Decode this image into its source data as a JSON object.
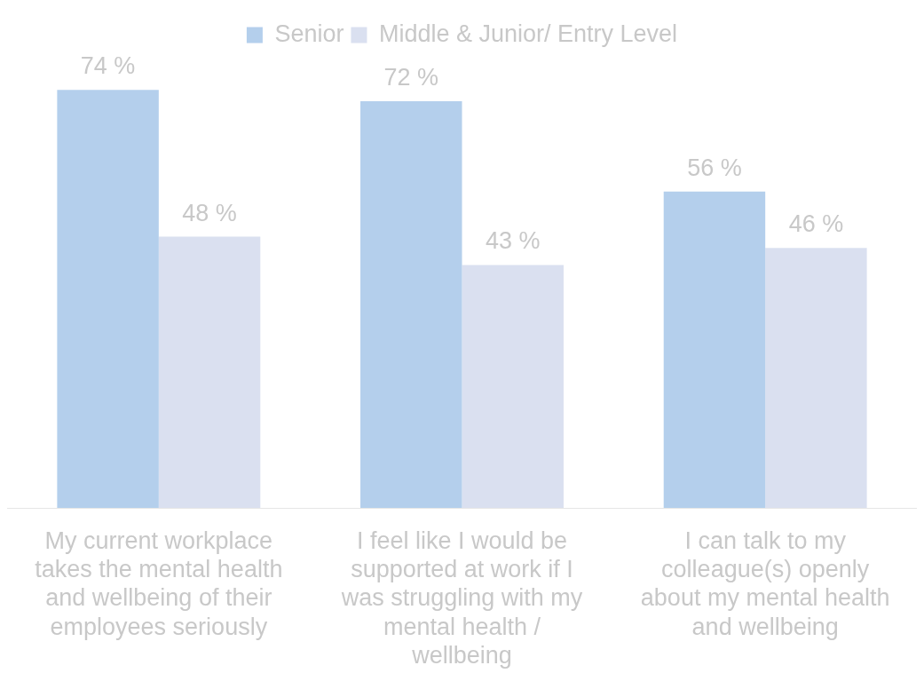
{
  "chart_data": {
    "type": "bar",
    "categories": [
      "My current workplace takes the mental health and wellbeing of their employees seriously",
      "I feel like I would be supported at work if I was struggling with my mental health / wellbeing",
      "I can talk to my colleague(s) openly about my mental health and wellbeing"
    ],
    "series": [
      {
        "name": "Senior",
        "color": "#b4cfec",
        "values": [
          74,
          72,
          56
        ],
        "value_labels": [
          "74 %",
          "72 %",
          "56 %"
        ]
      },
      {
        "name": "Middle & Junior/ Entry Level",
        "color": "#dae0f0",
        "values": [
          48,
          43,
          46
        ],
        "value_labels": [
          "48 %",
          "43 %",
          "46 %"
        ]
      }
    ],
    "legend": "top",
    "grid": false
  }
}
